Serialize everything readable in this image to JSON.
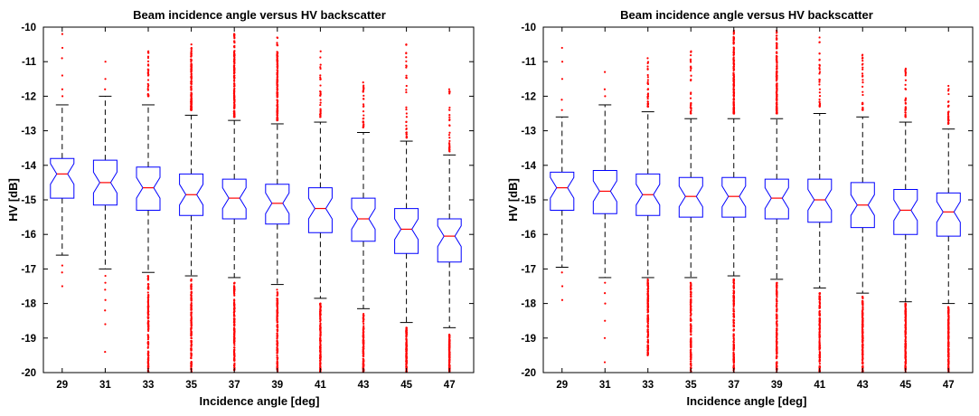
{
  "chart_data": [
    {
      "type": "boxplot",
      "title": "Beam incidence angle versus HV backscatter",
      "xlabel": "Incidence angle [deg]",
      "ylabel": "HV [dB]",
      "ylim": [
        -20,
        -10
      ],
      "yticks": [
        -10,
        -11,
        -12,
        -13,
        -14,
        -15,
        -16,
        -17,
        -18,
        -19,
        -20
      ],
      "categories": [
        "29",
        "31",
        "33",
        "35",
        "37",
        "39",
        "41",
        "43",
        "45",
        "47"
      ],
      "notched": true,
      "box_color": "#0000ff",
      "median_color": "#ff0000",
      "outlier_color": "#ff0000",
      "whisker_color": "#000000",
      "boxes": [
        {
          "q1": -14.95,
          "median": -14.25,
          "q3": -13.8,
          "whisker_low": -16.6,
          "whisker_high": -12.25,
          "outliers_low": [
            -16.9,
            -17.1,
            -17.5
          ],
          "outliers_high": [
            -12.0,
            -11.8,
            -11.4,
            -10.9,
            -10.6,
            -10.2
          ],
          "outlier_density_low": "sparse",
          "outlier_density_high": "sparse"
        },
        {
          "q1": -15.15,
          "median": -14.5,
          "q3": -13.85,
          "whisker_low": -17.0,
          "whisker_high": -12.0,
          "outliers_low": [
            -17.2,
            -17.4,
            -17.6,
            -17.9,
            -18.2,
            -18.6,
            -19.4
          ],
          "outliers_high": [
            -11.8,
            -11.5,
            -11.0
          ],
          "outlier_density_low": "sparse",
          "outlier_density_high": "sparse"
        },
        {
          "q1": -15.3,
          "median": -14.65,
          "q3": -14.05,
          "whisker_low": -17.1,
          "whisker_high": -12.25,
          "outliers_low": [
            -20.0,
            -17.2
          ],
          "outliers_high": [
            -12.0,
            -11.4,
            -10.7
          ],
          "outlier_density_low": "dense",
          "outlier_density_high": "medium"
        },
        {
          "q1": -15.45,
          "median": -14.85,
          "q3": -14.25,
          "whisker_low": -17.2,
          "whisker_high": -12.55,
          "outliers_low": [
            -20.0,
            -17.3
          ],
          "outliers_high": [
            -12.4,
            -11.0,
            -10.5
          ],
          "outlier_density_low": "dense",
          "outlier_density_high": "dense"
        },
        {
          "q1": -15.55,
          "median": -14.95,
          "q3": -14.4,
          "whisker_low": -17.25,
          "whisker_high": -12.7,
          "outliers_low": [
            -20.0,
            -17.4
          ],
          "outliers_high": [
            -12.6,
            -11.0,
            -10.2
          ],
          "outlier_density_low": "dense",
          "outlier_density_high": "dense"
        },
        {
          "q1": -15.7,
          "median": -15.1,
          "q3": -14.55,
          "whisker_low": -17.45,
          "whisker_high": -12.8,
          "outliers_low": [
            -20.0,
            -17.6
          ],
          "outliers_high": [
            -12.7,
            -11.0,
            -10.3
          ],
          "outlier_density_low": "dense",
          "outlier_density_high": "dense"
        },
        {
          "q1": -15.95,
          "median": -15.25,
          "q3": -14.65,
          "whisker_low": -17.85,
          "whisker_high": -12.75,
          "outliers_low": [
            -20.0,
            -18.0
          ],
          "outliers_high": [
            -12.6,
            -11.5,
            -10.7
          ],
          "outlier_density_low": "dense",
          "outlier_density_high": "medium"
        },
        {
          "q1": -16.2,
          "median": -15.55,
          "q3": -14.95,
          "whisker_low": -18.15,
          "whisker_high": -13.05,
          "outliers_low": [
            -20.0,
            -18.3
          ],
          "outliers_high": [
            -12.9,
            -12.3,
            -11.6
          ],
          "outlier_density_low": "dense",
          "outlier_density_high": "medium"
        },
        {
          "q1": -16.55,
          "median": -15.85,
          "q3": -15.25,
          "whisker_low": -18.55,
          "whisker_high": -13.3,
          "outliers_low": [
            -20.0,
            -18.7
          ],
          "outliers_high": [
            -13.2,
            -12.5,
            -11.7,
            -10.5
          ],
          "outlier_density_low": "dense",
          "outlier_density_high": "medium"
        },
        {
          "q1": -16.8,
          "median": -16.05,
          "q3": -15.55,
          "whisker_low": -18.7,
          "whisker_high": -13.7,
          "outliers_low": [
            -20.0,
            -18.9
          ],
          "outliers_high": [
            -13.6,
            -13.2,
            -12.4,
            -11.8
          ],
          "outlier_density_low": "dense",
          "outlier_density_high": "medium"
        }
      ]
    },
    {
      "type": "boxplot",
      "title": "Beam incidence angle versus HV backscatter",
      "xlabel": "Incidence angle [deg]",
      "ylabel": "HV [dB]",
      "ylim": [
        -20,
        -10
      ],
      "yticks": [
        -10,
        -11,
        -12,
        -13,
        -14,
        -15,
        -16,
        -17,
        -18,
        -19,
        -20
      ],
      "categories": [
        "29",
        "31",
        "33",
        "35",
        "37",
        "39",
        "41",
        "43",
        "45",
        "47"
      ],
      "notched": true,
      "box_color": "#0000ff",
      "median_color": "#ff0000",
      "outlier_color": "#ff0000",
      "whisker_color": "#000000",
      "boxes": [
        {
          "q1": -15.3,
          "median": -14.65,
          "q3": -14.2,
          "whisker_low": -16.95,
          "whisker_high": -12.6,
          "outliers_low": [
            -17.1,
            -17.5,
            -17.9
          ],
          "outliers_high": [
            -12.4,
            -12.1,
            -11.5,
            -11.0,
            -10.6
          ],
          "outlier_density_low": "sparse",
          "outlier_density_high": "sparse"
        },
        {
          "q1": -15.4,
          "median": -14.75,
          "q3": -14.15,
          "whisker_low": -17.25,
          "whisker_high": -12.25,
          "outliers_low": [
            -17.4,
            -17.7,
            -18.0,
            -18.5,
            -19.0,
            -19.7
          ],
          "outliers_high": [
            -12.0,
            -11.8,
            -11.3
          ],
          "outlier_density_low": "sparse",
          "outlier_density_high": "sparse"
        },
        {
          "q1": -15.45,
          "median": -14.85,
          "q3": -14.25,
          "whisker_low": -17.25,
          "whisker_high": -12.45,
          "outliers_low": [
            -19.5,
            -17.3
          ],
          "outliers_high": [
            -12.3,
            -11.8,
            -10.9
          ],
          "outlier_density_low": "dense",
          "outlier_density_high": "medium"
        },
        {
          "q1": -15.5,
          "median": -14.9,
          "q3": -14.35,
          "whisker_low": -17.25,
          "whisker_high": -12.65,
          "outliers_low": [
            -20.0,
            -17.4
          ],
          "outliers_high": [
            -12.5,
            -11.2,
            -10.7
          ],
          "outlier_density_low": "dense",
          "outlier_density_high": "medium"
        },
        {
          "q1": -15.5,
          "median": -14.9,
          "q3": -14.35,
          "whisker_low": -17.2,
          "whisker_high": -12.65,
          "outliers_low": [
            -20.0,
            -17.3
          ],
          "outliers_high": [
            -12.5,
            -11.0,
            -10.1
          ],
          "outlier_density_low": "dense",
          "outlier_density_high": "dense"
        },
        {
          "q1": -15.55,
          "median": -14.95,
          "q3": -14.4,
          "whisker_low": -17.3,
          "whisker_high": -12.65,
          "outliers_low": [
            -20.0,
            -17.4
          ],
          "outliers_high": [
            -12.5,
            -11.1,
            -10.1
          ],
          "outlier_density_low": "dense",
          "outlier_density_high": "dense"
        },
        {
          "q1": -15.65,
          "median": -15.0,
          "q3": -14.4,
          "whisker_low": -17.55,
          "whisker_high": -12.5,
          "outliers_low": [
            -20.0,
            -17.7
          ],
          "outliers_high": [
            -12.3,
            -11.3,
            -10.3
          ],
          "outlier_density_low": "dense",
          "outlier_density_high": "medium"
        },
        {
          "q1": -15.8,
          "median": -15.15,
          "q3": -14.5,
          "whisker_low": -17.7,
          "whisker_high": -12.6,
          "outliers_low": [
            -20.0,
            -17.8
          ],
          "outliers_high": [
            -12.4,
            -11.6,
            -10.8
          ],
          "outlier_density_low": "dense",
          "outlier_density_high": "medium"
        },
        {
          "q1": -16.0,
          "median": -15.3,
          "q3": -14.7,
          "whisker_low": -17.95,
          "whisker_high": -12.75,
          "outliers_low": [
            -20.0,
            -18.0
          ],
          "outliers_high": [
            -12.6,
            -11.8,
            -11.2
          ],
          "outlier_density_low": "dense",
          "outlier_density_high": "medium"
        },
        {
          "q1": -16.05,
          "median": -15.35,
          "q3": -14.8,
          "whisker_low": -18.0,
          "whisker_high": -12.95,
          "outliers_low": [
            -20.0,
            -18.1
          ],
          "outliers_high": [
            -12.8,
            -12.3,
            -11.7
          ],
          "outlier_density_low": "dense",
          "outlier_density_high": "medium"
        }
      ]
    }
  ]
}
